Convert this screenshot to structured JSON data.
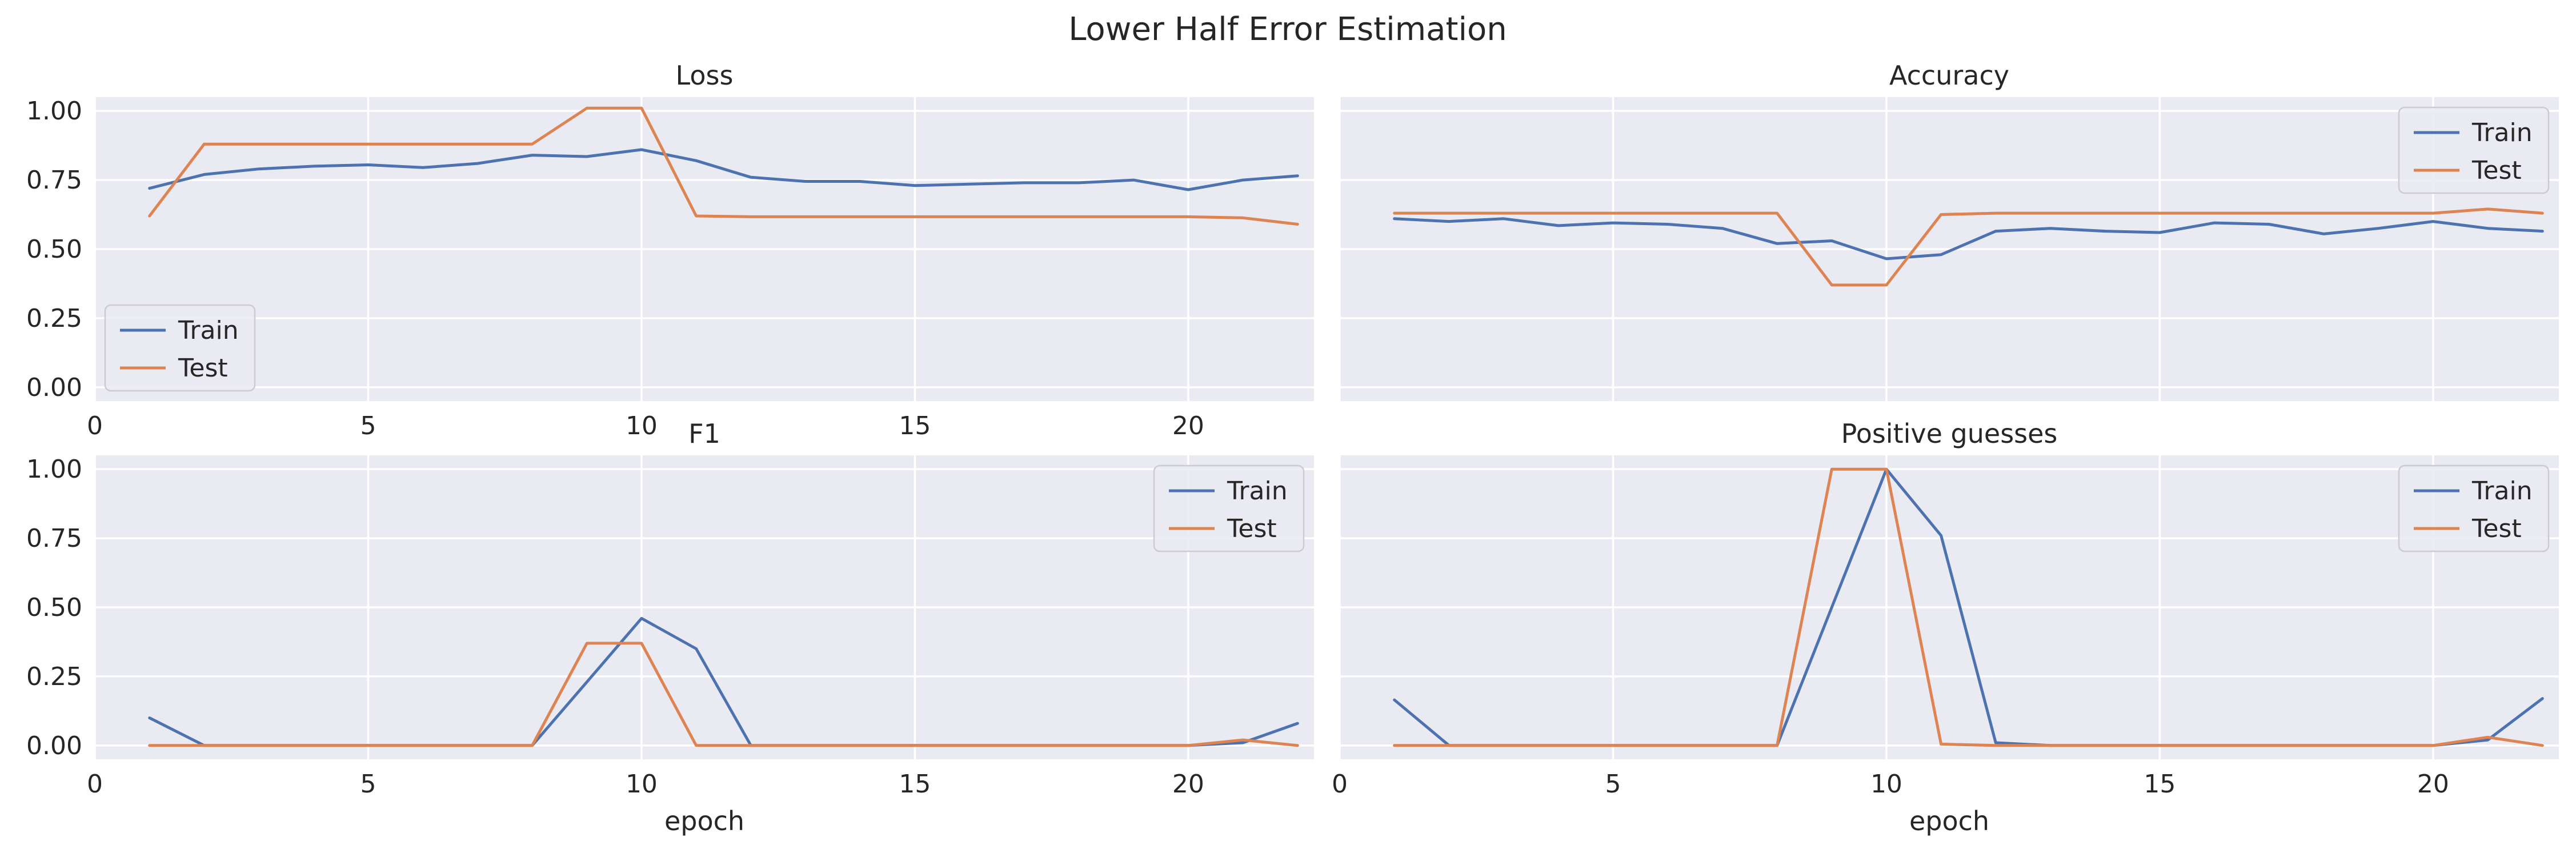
{
  "figure": {
    "title": "Lower Half Error Estimation"
  },
  "colors": {
    "train": "#4c72b0",
    "test": "#dd8452",
    "panel_bg": "#eaeaf2",
    "grid": "#ffffff",
    "text": "#262626"
  },
  "chart_data": [
    {
      "type": "line",
      "title": "Loss",
      "xlabel": "",
      "ylabel": "",
      "xlim": [
        0,
        22.3
      ],
      "ylim": [
        -0.05,
        1.05
      ],
      "xticks": [
        "0",
        "5",
        "10",
        "15",
        "20"
      ],
      "yticks": [
        "0.00",
        "0.25",
        "0.50",
        "0.75",
        "1.00"
      ],
      "grid": true,
      "legend": "lower-left",
      "x": [
        1,
        2,
        3,
        4,
        5,
        6,
        7,
        8,
        9,
        10,
        11,
        12,
        13,
        14,
        15,
        16,
        17,
        18,
        19,
        20,
        21,
        22
      ],
      "series": [
        {
          "name": "Train",
          "values": [
            0.72,
            0.77,
            0.79,
            0.8,
            0.805,
            0.795,
            0.81,
            0.84,
            0.835,
            0.86,
            0.82,
            0.76,
            0.745,
            0.745,
            0.73,
            0.735,
            0.74,
            0.74,
            0.75,
            0.715,
            0.75,
            0.765
          ]
        },
        {
          "name": "Test",
          "values": [
            0.62,
            0.88,
            0.88,
            0.88,
            0.88,
            0.88,
            0.88,
            0.88,
            1.01,
            1.01,
            0.62,
            0.617,
            0.617,
            0.617,
            0.617,
            0.617,
            0.617,
            0.617,
            0.617,
            0.617,
            0.613,
            0.59
          ]
        }
      ]
    },
    {
      "type": "line",
      "title": "Accuracy",
      "xlabel": "",
      "ylabel": "",
      "xlim": [
        0,
        22.3
      ],
      "ylim": [
        -0.05,
        1.05
      ],
      "xticks": [],
      "yticks": [],
      "grid": true,
      "legend": "top-right",
      "x": [
        1,
        2,
        3,
        4,
        5,
        6,
        7,
        8,
        9,
        10,
        11,
        12,
        13,
        14,
        15,
        16,
        17,
        18,
        19,
        20,
        21,
        22
      ],
      "series": [
        {
          "name": "Train",
          "values": [
            0.61,
            0.6,
            0.61,
            0.585,
            0.595,
            0.59,
            0.575,
            0.52,
            0.53,
            0.465,
            0.48,
            0.565,
            0.575,
            0.565,
            0.56,
            0.595,
            0.59,
            0.555,
            0.575,
            0.6,
            0.575,
            0.565
          ]
        },
        {
          "name": "Test",
          "values": [
            0.63,
            0.63,
            0.63,
            0.63,
            0.63,
            0.63,
            0.63,
            0.63,
            0.37,
            0.37,
            0.625,
            0.63,
            0.63,
            0.63,
            0.63,
            0.63,
            0.63,
            0.63,
            0.63,
            0.63,
            0.645,
            0.63
          ]
        }
      ]
    },
    {
      "type": "line",
      "title": "F1",
      "xlabel": "epoch",
      "ylabel": "",
      "xlim": [
        0,
        22.3
      ],
      "ylim": [
        -0.05,
        1.05
      ],
      "xticks": [
        "0",
        "5",
        "10",
        "15",
        "20"
      ],
      "yticks": [
        "0.00",
        "0.25",
        "0.50",
        "0.75",
        "1.00"
      ],
      "grid": true,
      "legend": "top-right",
      "x": [
        1,
        2,
        3,
        4,
        5,
        6,
        7,
        8,
        9,
        10,
        11,
        12,
        13,
        14,
        15,
        16,
        17,
        18,
        19,
        20,
        21,
        22
      ],
      "series": [
        {
          "name": "Train",
          "values": [
            0.1,
            0,
            0,
            0,
            0,
            0,
            0,
            0,
            0.23,
            0.46,
            0.35,
            0,
            0,
            0,
            0,
            0,
            0,
            0,
            0,
            0,
            0.01,
            0.08
          ]
        },
        {
          "name": "Test",
          "values": [
            0,
            0,
            0,
            0,
            0,
            0,
            0,
            0,
            0.37,
            0.37,
            0,
            0,
            0,
            0,
            0,
            0,
            0,
            0,
            0,
            0,
            0.02,
            0
          ]
        }
      ]
    },
    {
      "type": "line",
      "title": "Positive guesses",
      "xlabel": "epoch",
      "ylabel": "",
      "xlim": [
        0,
        22.3
      ],
      "ylim": [
        -0.05,
        1.05
      ],
      "xticks": [
        "0",
        "5",
        "10",
        "15",
        "20"
      ],
      "yticks": [],
      "grid": true,
      "legend": "top-right",
      "x": [
        1,
        2,
        3,
        4,
        5,
        6,
        7,
        8,
        9,
        10,
        11,
        12,
        13,
        14,
        15,
        16,
        17,
        18,
        19,
        20,
        21,
        22
      ],
      "series": [
        {
          "name": "Train",
          "values": [
            0.165,
            0,
            0,
            0,
            0,
            0,
            0,
            0,
            0.5,
            1.0,
            0.76,
            0.01,
            0,
            0,
            0,
            0,
            0,
            0,
            0,
            0,
            0.02,
            0.17
          ]
        },
        {
          "name": "Test",
          "values": [
            0,
            0,
            0,
            0,
            0,
            0,
            0,
            0,
            1.0,
            1.0,
            0.005,
            0,
            0,
            0,
            0,
            0,
            0,
            0,
            0,
            0,
            0.03,
            0
          ]
        }
      ]
    }
  ]
}
